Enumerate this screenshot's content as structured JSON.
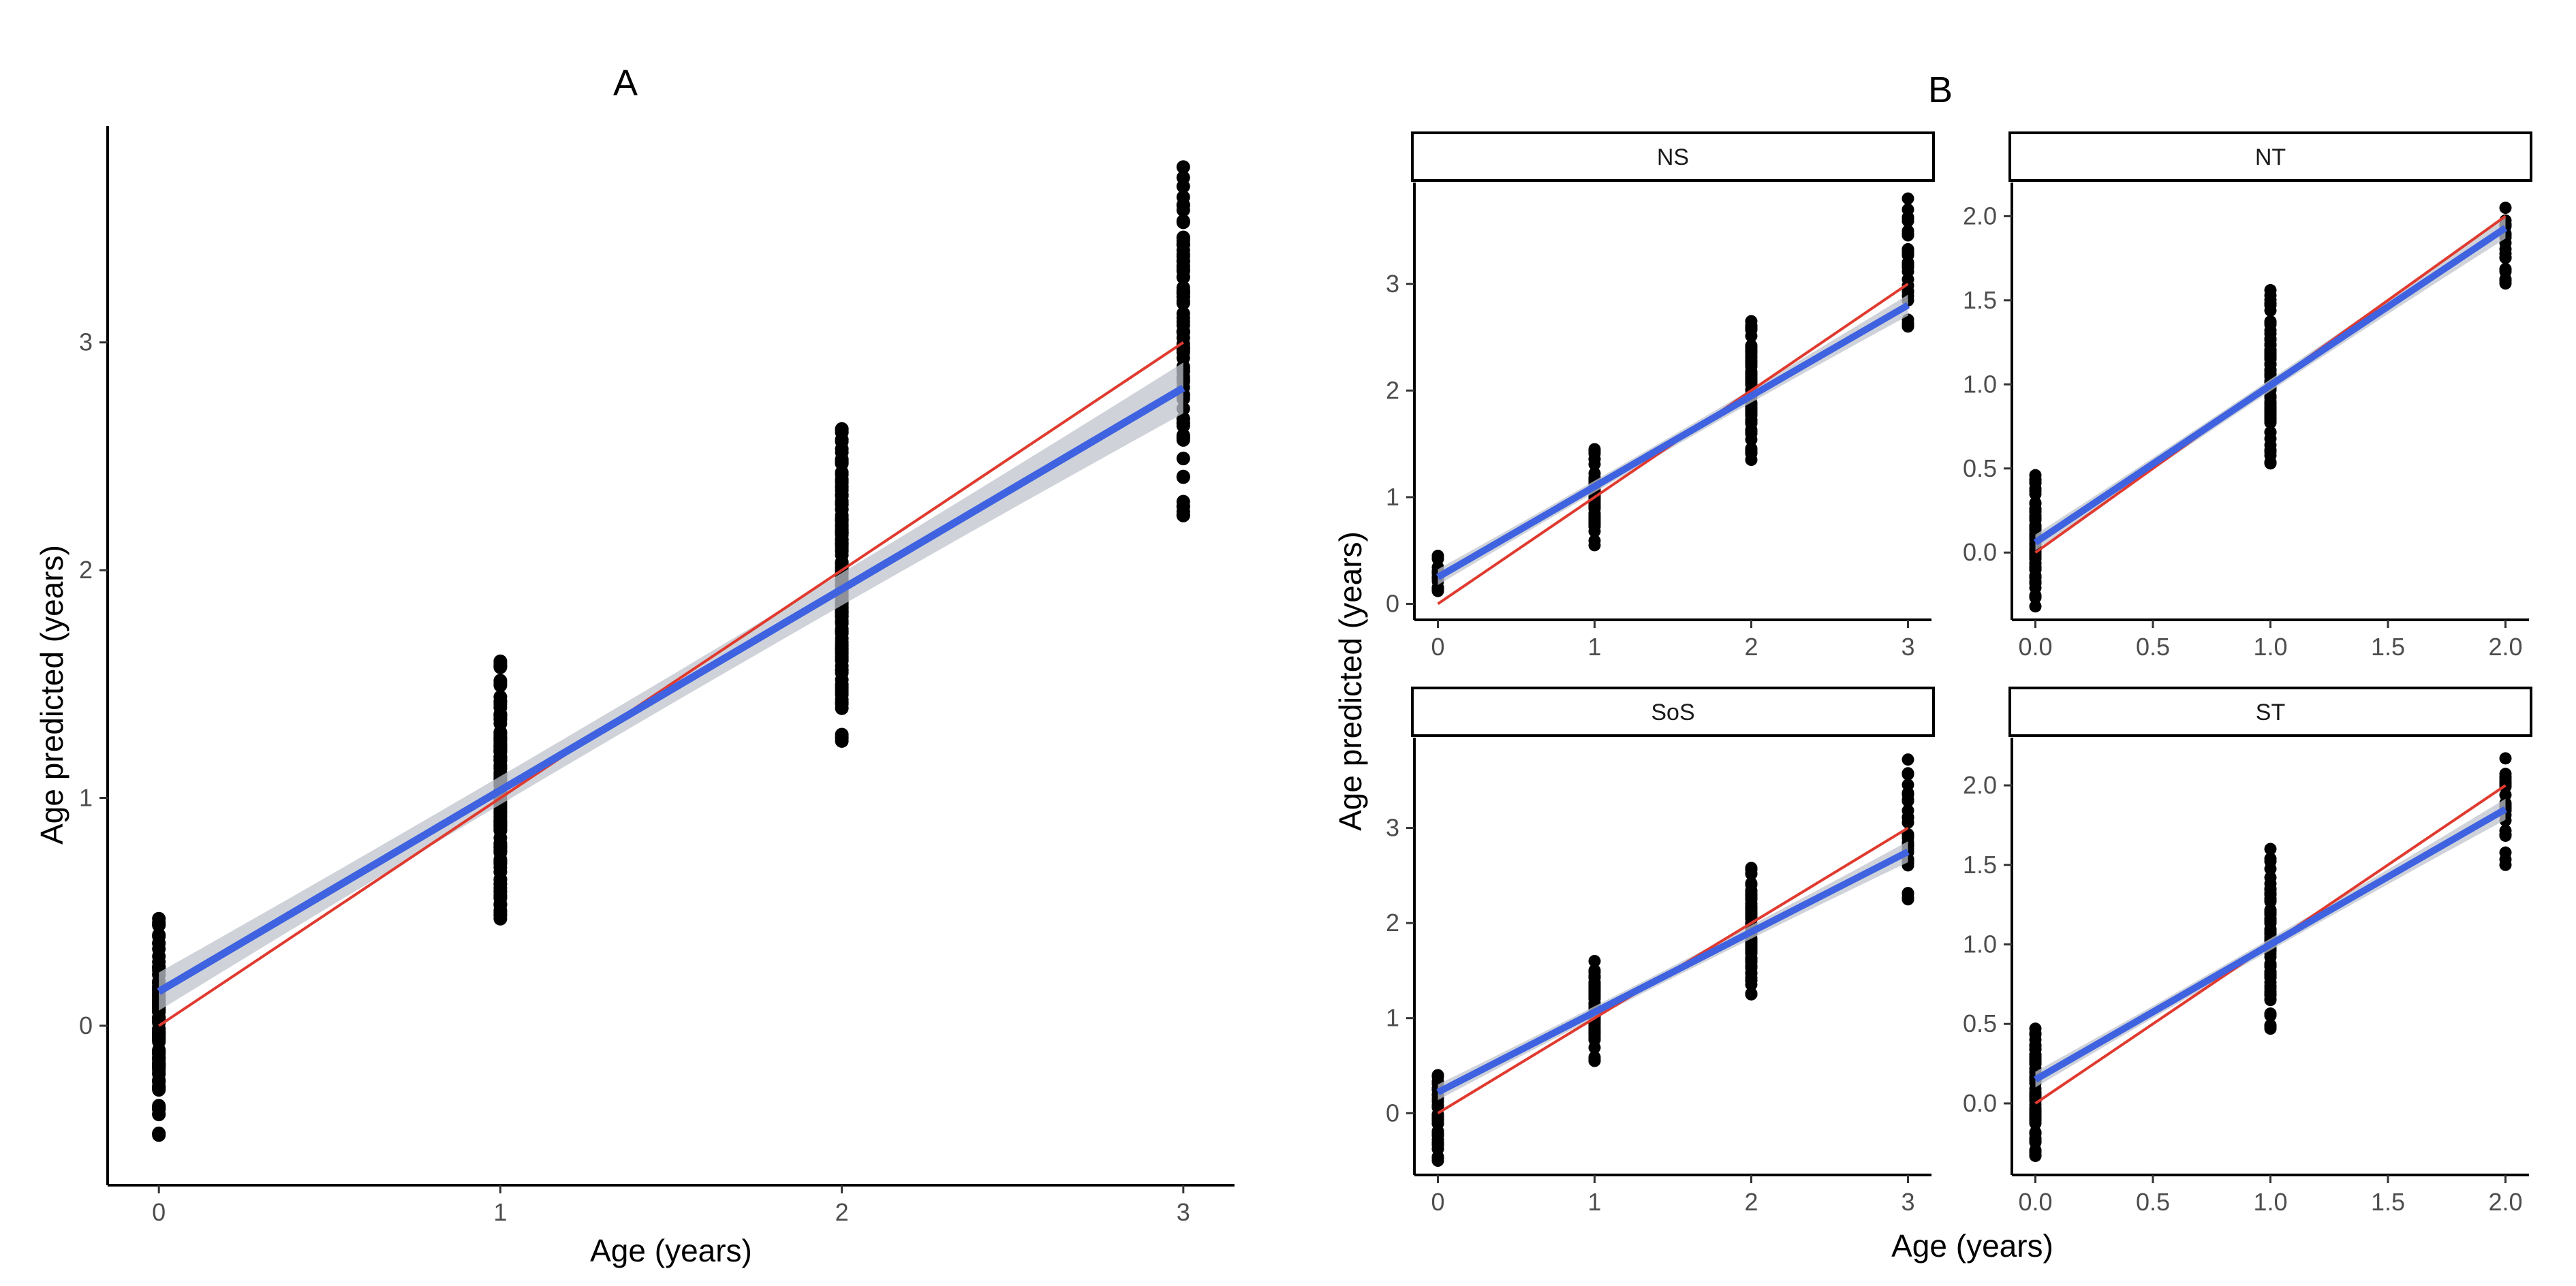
{
  "chart_data": [
    {
      "type": "scatter",
      "panel": "A",
      "title": "A",
      "xlabel": "Age (years)",
      "ylabel": "Age predicted (years)",
      "xlim": [
        -0.15,
        3.15
      ],
      "ylim": [
        -0.7,
        3.95
      ],
      "xticks": [
        0,
        1,
        2,
        3
      ],
      "xtick_labels": [
        "0",
        "1",
        "2",
        "3"
      ],
      "yticks": [
        0,
        1,
        2,
        3
      ],
      "ytick_labels": [
        "0",
        "1",
        "2",
        "3"
      ],
      "point_color": "#000000",
      "groups": [
        {
          "x": 0,
          "y_min": -0.48,
          "y_max": 0.47,
          "n": 60
        },
        {
          "x": 1,
          "y_min": 0.47,
          "y_max": 1.6,
          "n": 70
        },
        {
          "x": 2,
          "y_min": 1.25,
          "y_max": 2.62,
          "n": 70
        },
        {
          "x": 3,
          "y_min": 2.24,
          "y_max": 3.77,
          "n": 40
        }
      ],
      "identity_line": {
        "label": "y = x",
        "color": "#e03a2f",
        "x": [
          0,
          3
        ],
        "y": [
          0,
          3
        ]
      },
      "fit_line": {
        "label": "linear fit",
        "color": "#3f62e0",
        "ci_color": "#bfc4cc",
        "x": [
          0,
          3
        ],
        "y": [
          0.15,
          2.8
        ]
      }
    },
    {
      "type": "scatter",
      "panel": "B",
      "title": "B",
      "xlabel": "Age (years)",
      "ylabel": "Age predicted (years)",
      "facets": [
        {
          "label": "NS",
          "xlim": [
            -0.15,
            3.15
          ],
          "ylim": [
            -0.15,
            3.95
          ],
          "xticks": [
            0,
            1,
            2,
            3
          ],
          "xtick_labels": [
            "0",
            "1",
            "2",
            "3"
          ],
          "yticks": [
            0,
            1,
            2,
            3
          ],
          "ytick_labels": [
            "0",
            "1",
            "2",
            "3"
          ],
          "groups": [
            {
              "x": 0,
              "y_min": 0.12,
              "y_max": 0.45,
              "n": 8
            },
            {
              "x": 1,
              "y_min": 0.55,
              "y_max": 1.45,
              "n": 30
            },
            {
              "x": 2,
              "y_min": 1.35,
              "y_max": 2.65,
              "n": 35
            },
            {
              "x": 3,
              "y_min": 2.6,
              "y_max": 3.8,
              "n": 15
            }
          ],
          "identity_line": {
            "x": [
              0,
              3
            ],
            "y": [
              0,
              3
            ]
          },
          "fit_line": {
            "x": [
              0,
              3
            ],
            "y": [
              0.25,
              2.8
            ]
          }
        },
        {
          "label": "NT",
          "xlim": [
            -0.1,
            2.1
          ],
          "ylim": [
            -0.4,
            2.2
          ],
          "xticks": [
            0,
            0.5,
            1,
            1.5,
            2
          ],
          "xtick_labels": [
            "0.0",
            "0.5",
            "1.0",
            "1.5",
            "2.0"
          ],
          "yticks": [
            0,
            0.5,
            1,
            1.5,
            2
          ],
          "ytick_labels": [
            "0.0",
            "0.5",
            "1.0",
            "1.5",
            "2.0"
          ],
          "groups": [
            {
              "x": 0,
              "y_min": -0.32,
              "y_max": 0.46,
              "n": 35
            },
            {
              "x": 1,
              "y_min": 0.53,
              "y_max": 1.56,
              "n": 40
            },
            {
              "x": 2,
              "y_min": 1.6,
              "y_max": 2.05,
              "n": 10
            }
          ],
          "identity_line": {
            "x": [
              0,
              2
            ],
            "y": [
              0,
              2
            ]
          },
          "fit_line": {
            "x": [
              0,
              2
            ],
            "y": [
              0.06,
              1.93
            ]
          }
        },
        {
          "label": "SoS",
          "xlim": [
            -0.15,
            3.15
          ],
          "ylim": [
            -0.65,
            3.95
          ],
          "xticks": [
            0,
            1,
            2,
            3
          ],
          "xtick_labels": [
            "0",
            "1",
            "2",
            "3"
          ],
          "yticks": [
            0,
            1,
            2,
            3
          ],
          "ytick_labels": [
            "0",
            "1",
            "2",
            "3"
          ],
          "groups": [
            {
              "x": 0,
              "y_min": -0.5,
              "y_max": 0.4,
              "n": 20
            },
            {
              "x": 1,
              "y_min": 0.55,
              "y_max": 1.6,
              "n": 35
            },
            {
              "x": 2,
              "y_min": 1.25,
              "y_max": 2.58,
              "n": 40
            },
            {
              "x": 3,
              "y_min": 2.25,
              "y_max": 3.72,
              "n": 15
            }
          ],
          "identity_line": {
            "x": [
              0,
              3
            ],
            "y": [
              0,
              3
            ]
          },
          "fit_line": {
            "x": [
              0,
              3
            ],
            "y": [
              0.22,
              2.75
            ]
          }
        },
        {
          "label": "ST",
          "xlim": [
            -0.1,
            2.1
          ],
          "ylim": [
            -0.45,
            2.3
          ],
          "xticks": [
            0,
            0.5,
            1,
            1.5,
            2
          ],
          "xtick_labels": [
            "0.0",
            "0.5",
            "1.0",
            "1.5",
            "2.0"
          ],
          "yticks": [
            0,
            0.5,
            1,
            1.5,
            2
          ],
          "ytick_labels": [
            "0.0",
            "0.5",
            "1.0",
            "1.5",
            "2.0"
          ],
          "groups": [
            {
              "x": 0,
              "y_min": -0.33,
              "y_max": 0.47,
              "n": 35
            },
            {
              "x": 1,
              "y_min": 0.47,
              "y_max": 1.6,
              "n": 40
            },
            {
              "x": 2,
              "y_min": 1.5,
              "y_max": 2.17,
              "n": 12
            }
          ],
          "identity_line": {
            "x": [
              0,
              2
            ],
            "y": [
              0,
              2
            ]
          },
          "fit_line": {
            "x": [
              0,
              2
            ],
            "y": [
              0.15,
              1.85
            ]
          }
        }
      ]
    }
  ]
}
